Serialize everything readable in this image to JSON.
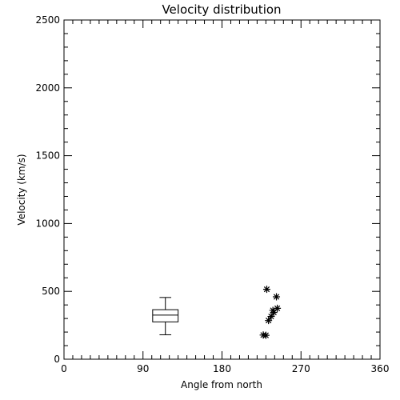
{
  "chart_data": {
    "type": "scatter",
    "title": "Velocity distribution",
    "xlabel": "Angle from north",
    "ylabel": "Velocity (km/s)",
    "xlim": [
      0,
      360
    ],
    "ylim": [
      0,
      2500
    ],
    "x_major_ticks": [
      0,
      90,
      180,
      270,
      360
    ],
    "y_major_ticks": [
      0,
      500,
      1000,
      1500,
      2000,
      2500
    ],
    "grid": false,
    "boxplot": {
      "x_range": [
        101,
        130
      ],
      "min": 180,
      "q1": 275,
      "median": 325,
      "q3": 365,
      "max": 455
    },
    "points": [
      {
        "x": 231,
        "y": 515
      },
      {
        "x": 242,
        "y": 460
      },
      {
        "x": 243,
        "y": 375
      },
      {
        "x": 238,
        "y": 360
      },
      {
        "x": 239,
        "y": 345
      },
      {
        "x": 236,
        "y": 315
      },
      {
        "x": 233,
        "y": 285
      },
      {
        "x": 227,
        "y": 178
      },
      {
        "x": 230,
        "y": 176
      }
    ],
    "marker": "asterisk",
    "color": "#000000"
  }
}
